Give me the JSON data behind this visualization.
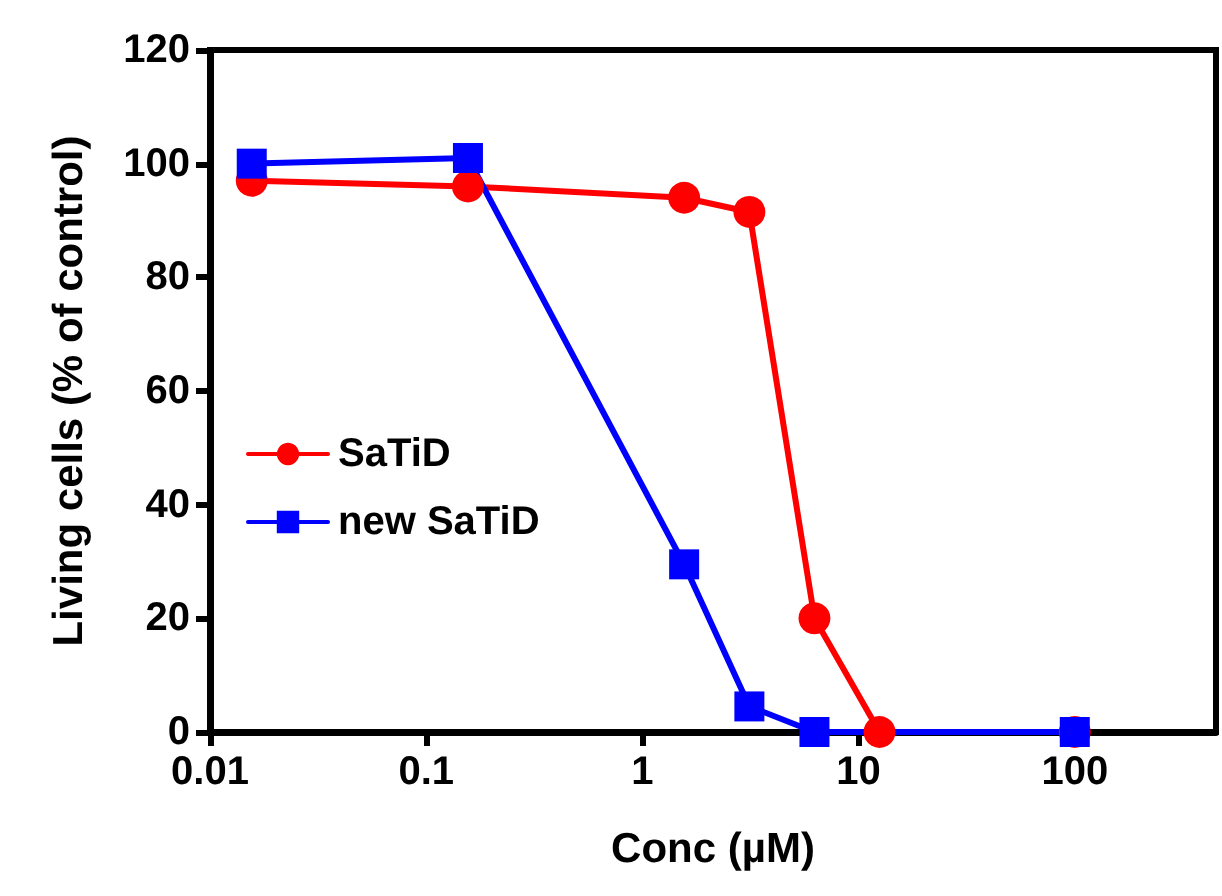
{
  "chart_data": {
    "type": "line",
    "xlabel": "Conc (µM)",
    "ylabel": "Living cells (% of control)",
    "log": "x",
    "xlim": [
      0.01,
      450
    ],
    "xticks": [
      0.01,
      0.1,
      1,
      10,
      100
    ],
    "ylim": [
      0,
      120
    ],
    "yticks": [
      0,
      20,
      40,
      60,
      80,
      100,
      120
    ],
    "grid": false,
    "legend": "left",
    "line_style": "solid",
    "series": [
      {
        "name": "SaTiD",
        "color": "#ff0000",
        "marker": "circle",
        "x": [
          0.0156,
          0.156,
          1.56,
          3.125,
          6.25,
          12.5,
          100
        ],
        "values": [
          97,
          96,
          94,
          91.5,
          20,
          0,
          0
        ]
      },
      {
        "name": "new SaTiD",
        "color": "#0000ff",
        "marker": "square",
        "x": [
          0.0156,
          0.156,
          1.56,
          3.125,
          6.25,
          100
        ],
        "values": [
          100,
          101,
          29.5,
          4.5,
          0,
          0
        ]
      }
    ]
  }
}
